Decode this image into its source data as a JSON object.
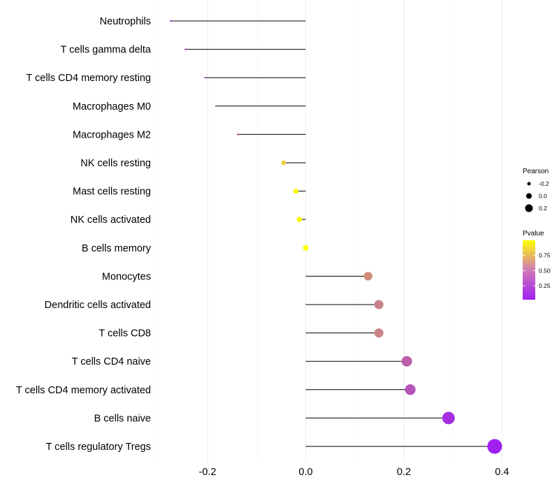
{
  "chart_data": {
    "type": "lollipop",
    "categories": [
      "Neutrophils",
      "T cells gamma delta",
      "T cells CD4 memory resting",
      "Macrophages M0",
      "Macrophages M2",
      "NK cells resting",
      "Mast cells resting",
      "NK cells activated",
      "B cells memory",
      "Monocytes",
      "Dendritic cells activated",
      "T cells CD8",
      "T cells CD4 naive",
      "T cells CD4 memory activated",
      "B cells naive",
      "T cells regulatory  Tregs"
    ],
    "pearson": [
      -0.275,
      -0.245,
      -0.205,
      -0.183,
      -0.138,
      -0.045,
      -0.02,
      -0.013,
      0.0,
      0.127,
      0.149,
      0.149,
      0.206,
      0.213,
      0.291,
      0.385
    ],
    "pvalue": [
      0.05,
      0.12,
      0.2,
      0.25,
      0.45,
      0.8,
      0.95,
      0.97,
      1.0,
      0.5,
      0.45,
      0.45,
      0.3,
      0.25,
      0.08,
      0.02
    ],
    "xlim": [
      -0.3,
      0.42
    ],
    "x_ticks": [
      -0.2,
      0.0,
      0.2,
      0.4
    ],
    "x_tick_labels": [
      "-0.2",
      "0.0",
      "0.2",
      "0.4"
    ],
    "xlabel": "",
    "ylabel": "",
    "legend": {
      "size_title": "Pearson",
      "size_values": [
        -0.2,
        0.0,
        0.2
      ],
      "size_labels": [
        "-0.2",
        "0.0",
        "0.2"
      ],
      "color_title": "Pvalue",
      "color_range": [
        0.02,
        1.0
      ],
      "color_ticks": [
        0.75,
        0.5,
        0.25
      ],
      "color_tick_labels": [
        "0.75",
        "0.50",
        "0.25"
      ],
      "color_low": "#a020f0",
      "color_high": "#ffff00"
    },
    "grid": true
  }
}
